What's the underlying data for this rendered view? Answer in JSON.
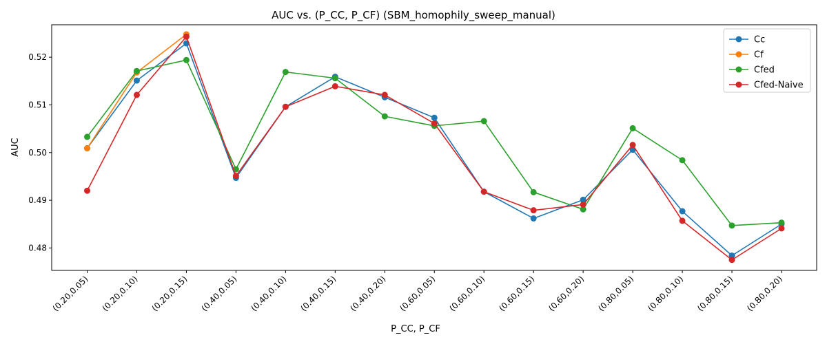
{
  "chart_data": {
    "type": "line",
    "title": "AUC vs. (P_CC, P_CF) (SBM_homophily_sweep_manual)",
    "xlabel": "P_CC, P_CF",
    "ylabel": "AUC",
    "ylim": [
      0.4753,
      0.5268
    ],
    "yticks": [
      0.48,
      0.49,
      0.5,
      0.51,
      0.52
    ],
    "ytick_labels": [
      "0.48",
      "0.49",
      "0.50",
      "0.51",
      "0.52"
    ],
    "grid": false,
    "legend_position": "top-right",
    "categories": [
      "(0.20,0.05)",
      "(0.20,0.10)",
      "(0.20,0.15)",
      "(0.40,0.05)",
      "(0.40,0.10)",
      "(0.40,0.15)",
      "(0.40,0.20)",
      "(0.60,0.05)",
      "(0.60,0.10)",
      "(0.60,0.15)",
      "(0.60,0.20)",
      "(0.80,0.05)",
      "(0.80,0.10)",
      "(0.80,0.15)",
      "(0.80,0.20)"
    ],
    "series": [
      {
        "name": "Cc",
        "color": "#1f77b4",
        "values": [
          0.5009,
          0.5151,
          0.5229,
          0.4947,
          0.5096,
          0.5159,
          0.5116,
          0.5073,
          0.4918,
          0.4862,
          0.4901,
          0.5006,
          0.4877,
          0.4784,
          0.485
        ]
      },
      {
        "name": "Cf",
        "color": "#ff7f0e",
        "values": [
          0.5009,
          0.5168,
          0.5248,
          null,
          null,
          null,
          null,
          null,
          null,
          null,
          null,
          null,
          null,
          null,
          null
        ]
      },
      {
        "name": "Cfed",
        "color": "#2ca02c",
        "values": [
          0.5033,
          0.5171,
          0.5194,
          0.4965,
          0.5169,
          0.5156,
          0.5076,
          0.5056,
          0.5066,
          0.4917,
          0.4881,
          0.5051,
          0.4984,
          0.4847,
          0.4853
        ]
      },
      {
        "name": "Cfed-Naive",
        "color": "#d62728",
        "values": [
          0.492,
          0.5121,
          0.5243,
          0.4951,
          0.5096,
          0.5139,
          0.5121,
          0.5061,
          0.4918,
          0.4879,
          0.4891,
          0.5016,
          0.4857,
          0.4775,
          0.4841
        ]
      }
    ]
  }
}
